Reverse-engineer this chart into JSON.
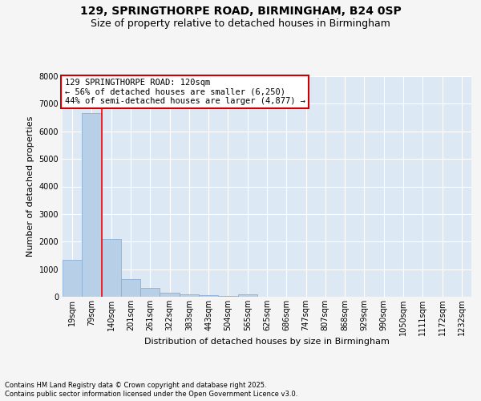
{
  "title": "129, SPRINGTHORPE ROAD, BIRMINGHAM, B24 0SP",
  "subtitle": "Size of property relative to detached houses in Birmingham",
  "xlabel": "Distribution of detached houses by size in Birmingham",
  "ylabel": "Number of detached properties",
  "categories": [
    "19sqm",
    "79sqm",
    "140sqm",
    "201sqm",
    "261sqm",
    "322sqm",
    "383sqm",
    "443sqm",
    "504sqm",
    "565sqm",
    "625sqm",
    "686sqm",
    "747sqm",
    "807sqm",
    "868sqm",
    "929sqm",
    "990sqm",
    "1050sqm",
    "1111sqm",
    "1172sqm",
    "1232sqm"
  ],
  "values": [
    1350,
    6650,
    2100,
    650,
    320,
    150,
    100,
    50,
    30,
    100,
    0,
    0,
    0,
    0,
    0,
    0,
    0,
    0,
    0,
    0,
    0
  ],
  "bar_color": "#b8cfe8",
  "bar_edge_color": "#8ab0d8",
  "bg_color": "#dde8f5",
  "grid_color": "#ffffff",
  "fig_bg_color": "#f5f5f5",
  "red_line_x": 1.5,
  "annotation_line1": "129 SPRINGTHORPE ROAD: 120sqm",
  "annotation_line2": "← 56% of detached houses are smaller (6,250)",
  "annotation_line3": "44% of semi-detached houses are larger (4,877) →",
  "annotation_box_facecolor": "#ffffff",
  "annotation_box_edgecolor": "#cc0000",
  "ylim_max": 8000,
  "yticks": [
    0,
    1000,
    2000,
    3000,
    4000,
    5000,
    6000,
    7000,
    8000
  ],
  "footer1": "Contains HM Land Registry data © Crown copyright and database right 2025.",
  "footer2": "Contains public sector information licensed under the Open Government Licence v3.0.",
  "title_fontsize": 10,
  "subtitle_fontsize": 9,
  "tick_fontsize": 7,
  "ylabel_fontsize": 8,
  "xlabel_fontsize": 8,
  "footer_fontsize": 6,
  "annot_fontsize": 7.5
}
